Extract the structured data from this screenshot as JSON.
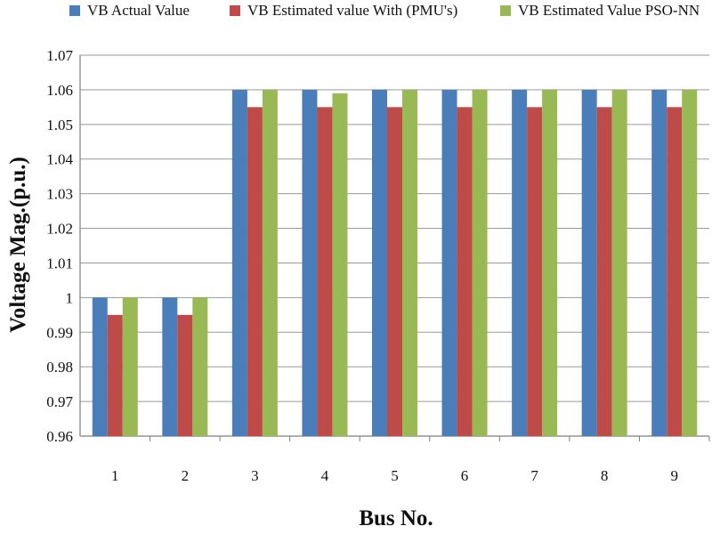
{
  "chart_data": {
    "type": "bar",
    "categories": [
      "1",
      "2",
      "3",
      "4",
      "5",
      "6",
      "7",
      "8",
      "9"
    ],
    "series": [
      {
        "name": "VB Actual Value",
        "color": "#4a7ebb",
        "values": [
          1.0,
          1.0,
          1.06,
          1.06,
          1.06,
          1.06,
          1.06,
          1.06,
          1.06
        ]
      },
      {
        "name": "VB Estimated value With (PMU's)",
        "color": "#be4b48",
        "values": [
          0.995,
          0.995,
          1.055,
          1.055,
          1.055,
          1.055,
          1.055,
          1.055,
          1.055
        ]
      },
      {
        "name": "VB Estimated Value PSO-NN",
        "color": "#98b954",
        "values": [
          1.0,
          1.0,
          1.06,
          1.059,
          1.06,
          1.06,
          1.06,
          1.06,
          1.06
        ]
      }
    ],
    "yticks": [
      "0.96",
      "0.97",
      "0.98",
      "0.99",
      "1",
      "1.01",
      "1.02",
      "1.03",
      "1.04",
      "1.05",
      "1.06",
      "1.07"
    ],
    "ylim": [
      0.96,
      1.07
    ],
    "xlabel": "Bus No.",
    "ylabel": "Voltage Mag.(p.u.)",
    "grid": "horizontal",
    "legend_position": "top"
  }
}
